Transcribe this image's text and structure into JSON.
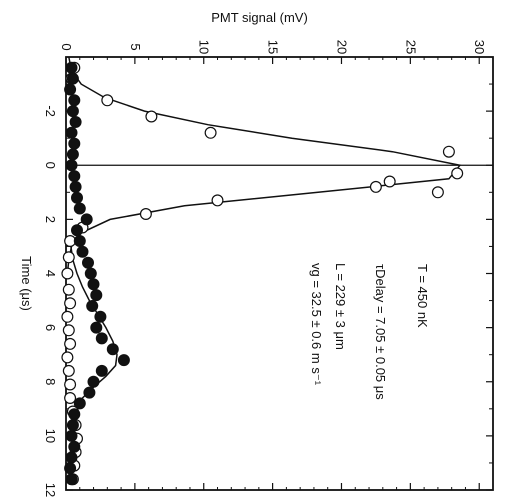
{
  "chart_data": {
    "type": "scatter",
    "orientation": "rotated 90 degrees clockwise (time axis runs downward along the bottom edge, signal axis across the top)",
    "xlabel": "Time (μs)",
    "ylabel": "PMT signal (mV)",
    "xlim": [
      -4,
      12
    ],
    "ylim": [
      0,
      31
    ],
    "x_ticks": [
      "-2",
      "0",
      "2",
      "4",
      "6",
      "8",
      "10",
      "12"
    ],
    "y_ticks": [
      "0",
      "5",
      "10",
      "15",
      "20",
      "25",
      "30"
    ],
    "annotations": [
      "T = 450 nK",
      "τDelay = 7.05 ± 0.05 μs",
      "L = 229 ± 3 μm",
      "vg = 32.5 ± 0.6 m s⁻¹"
    ],
    "series": [
      {
        "marker": "open-circle",
        "x": [
          -3.6,
          -3.2,
          -2.4,
          -1.8,
          -1.2,
          0.6,
          1.0,
          0.3,
          -0.5,
          0.8,
          1.3,
          1.8,
          2.3,
          2.8,
          3.4,
          4.0,
          4.6,
          5.1,
          5.6,
          6.1,
          6.6,
          7.1,
          7.6,
          8.1,
          8.6,
          9.1,
          9.6,
          10.1,
          10.6,
          11.1,
          11.6
        ],
        "values": [
          0.6,
          0.4,
          3.0,
          6.2,
          10.5,
          23.5,
          27.0,
          28.4,
          27.8,
          22.5,
          11.0,
          5.8,
          1.2,
          0.3,
          0.2,
          0.1,
          0.2,
          0.3,
          0.1,
          0.2,
          0.3,
          0.1,
          0.2,
          0.3,
          0.3,
          0.5,
          0.7,
          0.8,
          0.7,
          0.6,
          0.5
        ]
      },
      {
        "marker": "filled-circle",
        "x": [
          -3.6,
          -3.2,
          -2.8,
          -2.4,
          -2.0,
          -1.6,
          -1.2,
          -0.8,
          -0.4,
          0.0,
          0.4,
          0.8,
          1.2,
          1.6,
          2.0,
          2.4,
          2.8,
          3.2,
          3.6,
          4.0,
          4.4,
          4.8,
          5.2,
          5.6,
          6.0,
          6.4,
          6.8,
          7.2,
          7.6,
          8.0,
          8.4,
          8.8,
          9.2,
          9.6,
          10.0,
          10.4,
          10.8,
          11.2,
          11.6
        ],
        "values": [
          0.4,
          0.5,
          0.3,
          0.6,
          0.5,
          0.7,
          0.4,
          0.6,
          0.5,
          0.4,
          0.6,
          0.7,
          0.8,
          1.0,
          1.5,
          0.8,
          1.0,
          1.2,
          1.6,
          1.8,
          2.0,
          2.2,
          1.9,
          2.5,
          2.2,
          2.6,
          3.4,
          4.2,
          2.6,
          2.0,
          1.7,
          1.0,
          0.6,
          0.5,
          0.4,
          0.6,
          0.4,
          0.3,
          0.4
        ]
      }
    ],
    "fit_curves": [
      {
        "for": "open-circle",
        "x": [
          -4.0,
          -3.5,
          -3.0,
          -2.5,
          -2.0,
          -1.5,
          -1.0,
          -0.5,
          0.0,
          0.5,
          1.0,
          1.5,
          2.0,
          2.5,
          3.0,
          3.5,
          4.0
        ],
        "values": [
          0.2,
          0.4,
          1.1,
          2.8,
          5.7,
          10.3,
          16.4,
          23.7,
          28.6,
          27.8,
          18.3,
          8.6,
          3.2,
          1.1,
          0.4,
          0.2,
          0.1
        ]
      },
      {
        "for": "filled-circle",
        "x": [
          2.8,
          3.5,
          4.0,
          4.5,
          5.0,
          5.5,
          6.0,
          6.5,
          7.0,
          7.4,
          7.8,
          8.2,
          8.6,
          9.0
        ],
        "values": [
          0.3,
          0.5,
          0.8,
          1.2,
          1.7,
          2.3,
          2.9,
          3.4,
          3.7,
          3.6,
          2.9,
          2.0,
          1.2,
          0.6
        ]
      }
    ],
    "vertical_marker_at_time": 0,
    "grid": false
  }
}
